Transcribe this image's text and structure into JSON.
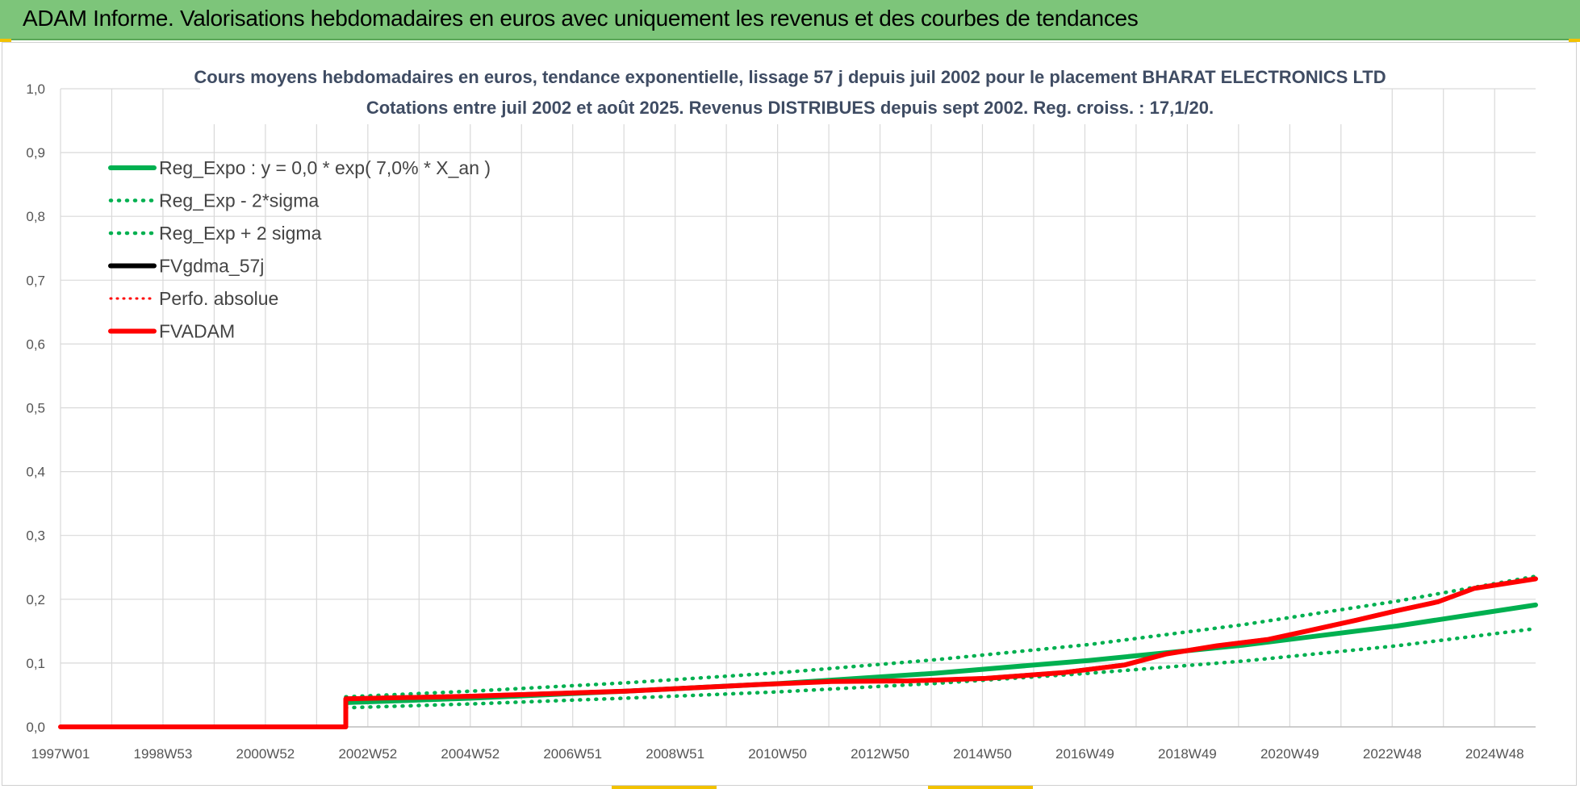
{
  "header": {
    "title": "ADAM Informe. Valorisations hebdomadaires en euros avec uniquement les revenus et des courbes de tendances"
  },
  "colors": {
    "banner": "#7dc57a",
    "accent": "#f2c200",
    "reg_expo": "#00b050",
    "fvgdma": "#000000",
    "fvadam": "#ff0000",
    "grid": "#d9d9d9"
  },
  "chart_data": {
    "type": "line",
    "title_line1": "Cours moyens hebdomadaires en euros, tendance exponentielle, lissage 57 j depuis juil 2002 pour le placement BHARAT ELECTRONICS LTD",
    "title_line2": "Cotations entre juil 2002 et août 2025. Revenus DISTRIBUES depuis sept 2002. Reg. croiss. : 17,1/20.",
    "x_ticks": [
      "1997W01",
      "1998W53",
      "2000W52",
      "2002W52",
      "2004W52",
      "2006W51",
      "2008W51",
      "2010W50",
      "2012W50",
      "2014W50",
      "2016W49",
      "2018W49",
      "2020W49",
      "2022W48",
      "2024W48"
    ],
    "x_range": [
      1997.0,
      2025.7
    ],
    "y_ticks": [
      "0,0",
      "0,1",
      "0,2",
      "0,3",
      "0,4",
      "0,5",
      "0,6",
      "0,7",
      "0,8",
      "0,9",
      "1,0"
    ],
    "ylim": [
      0,
      1.0
    ],
    "grid": true,
    "legend_position": "top-left",
    "legend": [
      {
        "label": "Reg_Expo : y = 0,0 * exp( 7,0% *  X_an )",
        "color": "#00b050",
        "style": "solid"
      },
      {
        "label": "Reg_Exp - 2*sigma",
        "color": "#00b050",
        "style": "dotted"
      },
      {
        "label": "Reg_Exp + 2 sigma",
        "color": "#00b050",
        "style": "dotted"
      },
      {
        "label": "FVgdma_57j",
        "color": "#000000",
        "style": "solid"
      },
      {
        "label": "Perfo. absolue",
        "color": "#ff0000",
        "style": "dotted"
      },
      {
        "label": "FVADAM",
        "color": "#ff0000",
        "style": "solid"
      }
    ],
    "series": [
      {
        "name": "Reg_Expo : y = 0,0 * exp( 7,0% *  X_an )",
        "x": [
          2002.55,
          2005,
          2008,
          2011,
          2014,
          2017,
          2020,
          2023,
          2025.7
        ],
        "y": [
          0.038,
          0.045,
          0.056,
          0.068,
          0.084,
          0.104,
          0.128,
          0.158,
          0.191
        ]
      },
      {
        "name": "Reg_Exp - 2*sigma",
        "x": [
          2002.55,
          2005,
          2008,
          2011,
          2014,
          2017,
          2020,
          2023,
          2025.7
        ],
        "y": [
          0.03,
          0.036,
          0.045,
          0.055,
          0.068,
          0.084,
          0.103,
          0.127,
          0.154
        ]
      },
      {
        "name": "Reg_Exp + 2 sigma",
        "x": [
          2002.55,
          2005,
          2008,
          2011,
          2014,
          2017,
          2020,
          2023,
          2025.7
        ],
        "y": [
          0.047,
          0.056,
          0.069,
          0.085,
          0.105,
          0.129,
          0.16,
          0.197,
          0.236
        ]
      },
      {
        "name": "FVgdma_57j",
        "x": [
          1997.0,
          2002.5,
          2002.55,
          2005,
          2008,
          2010.5,
          2012,
          2013.5,
          2015,
          2016.5,
          2017.7,
          2018.5,
          2019.5,
          2020.5,
          2021.3,
          2022.2,
          2023,
          2023.8,
          2024.5,
          2025.7
        ],
        "y": [
          0.0,
          0.0,
          0.045,
          0.049,
          0.057,
          0.067,
          0.072,
          0.073,
          0.077,
          0.086,
          0.098,
          0.115,
          0.128,
          0.138,
          0.152,
          0.168,
          0.183,
          0.197,
          0.218,
          0.232
        ]
      },
      {
        "name": "Perfo. absolue",
        "x": [
          1997.0,
          2002.5,
          2002.55,
          2005,
          2008,
          2010.5,
          2012,
          2013.5,
          2015,
          2016.5,
          2017.7,
          2018.5,
          2019.5,
          2020.5,
          2021.3,
          2022.2,
          2023,
          2023.8,
          2024.5,
          2025.7
        ],
        "y": [
          0.0,
          0.0,
          0.044,
          0.048,
          0.056,
          0.066,
          0.071,
          0.072,
          0.076,
          0.085,
          0.097,
          0.114,
          0.127,
          0.137,
          0.151,
          0.167,
          0.182,
          0.196,
          0.217,
          0.232
        ]
      },
      {
        "name": "FVADAM",
        "x": [
          1997.0,
          2002.5,
          2002.55,
          2005,
          2008,
          2010.5,
          2012,
          2013.5,
          2015,
          2016.5,
          2017.7,
          2018.5,
          2019.5,
          2020.5,
          2021.3,
          2022.2,
          2023,
          2023.8,
          2024.5,
          2025.7
        ],
        "y": [
          0.0,
          0.0,
          0.044,
          0.048,
          0.056,
          0.066,
          0.071,
          0.072,
          0.076,
          0.085,
          0.097,
          0.114,
          0.127,
          0.137,
          0.151,
          0.167,
          0.182,
          0.196,
          0.217,
          0.232
        ]
      }
    ]
  }
}
